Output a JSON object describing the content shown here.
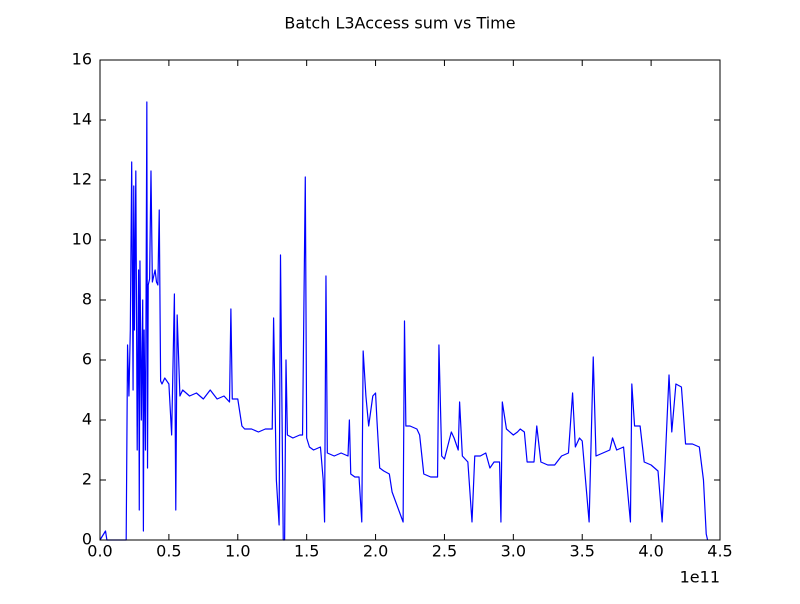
{
  "chart_data": {
    "type": "line",
    "title": "Batch L3Access sum vs Time",
    "x_offset_label": "1e11",
    "xlim": [
      0,
      4.5
    ],
    "ylim": [
      0,
      16
    ],
    "xticks": [
      {
        "value": 0,
        "label": "0.0"
      },
      0.5,
      {
        "value": 1,
        "label": "1.0"
      },
      1.5,
      {
        "value": 2,
        "label": "2.0"
      },
      2.5,
      {
        "value": 3,
        "label": "3.0"
      },
      3.5,
      {
        "value": 4,
        "label": "4.0"
      },
      4.5
    ],
    "yticks": [
      0,
      2,
      4,
      6,
      8,
      10,
      12,
      14,
      16
    ],
    "grid": false,
    "series": [
      {
        "name": "L3Access sum",
        "color": "#0000ff",
        "x": [
          0.0,
          0.04,
          0.05,
          0.15,
          0.17,
          0.19,
          0.2,
          0.21,
          0.22,
          0.23,
          0.24,
          0.245,
          0.25,
          0.26,
          0.27,
          0.28,
          0.285,
          0.29,
          0.3,
          0.31,
          0.315,
          0.32,
          0.33,
          0.34,
          0.345,
          0.35,
          0.36,
          0.37,
          0.38,
          0.39,
          0.4,
          0.41,
          0.42,
          0.43,
          0.44,
          0.45,
          0.47,
          0.5,
          0.52,
          0.54,
          0.55,
          0.56,
          0.58,
          0.6,
          0.65,
          0.7,
          0.75,
          0.8,
          0.85,
          0.9,
          0.94,
          0.95,
          0.96,
          1.0,
          1.03,
          1.05,
          1.1,
          1.15,
          1.2,
          1.25,
          1.26,
          1.28,
          1.3,
          1.31,
          1.33,
          1.34,
          1.35,
          1.36,
          1.4,
          1.45,
          1.47,
          1.49,
          1.5,
          1.52,
          1.55,
          1.6,
          1.62,
          1.63,
          1.64,
          1.65,
          1.7,
          1.75,
          1.8,
          1.81,
          1.82,
          1.85,
          1.88,
          1.9,
          1.91,
          1.93,
          1.95,
          1.98,
          2.0,
          2.01,
          2.03,
          2.06,
          2.1,
          2.12,
          2.2,
          2.21,
          2.22,
          2.25,
          2.3,
          2.32,
          2.35,
          2.4,
          2.45,
          2.46,
          2.48,
          2.5,
          2.55,
          2.57,
          2.6,
          2.61,
          2.63,
          2.67,
          2.7,
          2.72,
          2.76,
          2.8,
          2.83,
          2.86,
          2.9,
          2.91,
          2.92,
          2.95,
          3.0,
          3.03,
          3.05,
          3.08,
          3.1,
          3.15,
          3.17,
          3.2,
          3.25,
          3.3,
          3.35,
          3.4,
          3.43,
          3.45,
          3.48,
          3.5,
          3.55,
          3.58,
          3.6,
          3.65,
          3.7,
          3.72,
          3.75,
          3.8,
          3.85,
          3.86,
          3.88,
          3.92,
          3.95,
          4.0,
          4.05,
          4.08,
          4.1,
          4.13,
          4.15,
          4.18,
          4.22,
          4.25,
          4.3,
          4.35,
          4.38,
          4.4,
          4.41
        ],
        "values": [
          0,
          0.3,
          0,
          0,
          0,
          0,
          6.5,
          4.8,
          7,
          12.6,
          5,
          11.8,
          7,
          12.3,
          3,
          9,
          1,
          9.3,
          4,
          8,
          0.3,
          7,
          3,
          14.6,
          2.4,
          8.5,
          8.7,
          12.3,
          8.6,
          8.8,
          9,
          8.6,
          8.5,
          11,
          5.3,
          5.2,
          5.4,
          5.2,
          3.5,
          8.2,
          1,
          7.5,
          4.8,
          5,
          4.8,
          4.9,
          4.7,
          5,
          4.7,
          4.8,
          4.6,
          7.7,
          4.7,
          4.7,
          3.8,
          3.7,
          3.7,
          3.6,
          3.7,
          3.7,
          7.4,
          2,
          0.5,
          9.5,
          0,
          0,
          6,
          3.5,
          3.4,
          3.5,
          3.5,
          12.1,
          3.4,
          3.1,
          3,
          3.1,
          2,
          0.6,
          8.8,
          2.9,
          2.8,
          2.9,
          2.8,
          4,
          2.2,
          2.1,
          2.1,
          0.6,
          6.3,
          4.8,
          3.8,
          4.8,
          4.9,
          4,
          2.4,
          2.3,
          2.2,
          1.6,
          0.6,
          7.3,
          3.8,
          3.8,
          3.7,
          3.5,
          2.2,
          2.1,
          2.1,
          6.5,
          2.8,
          2.7,
          3.6,
          3.4,
          3,
          4.6,
          2.8,
          2.6,
          0.6,
          2.8,
          2.8,
          2.9,
          2.4,
          2.6,
          2.6,
          0.6,
          4.6,
          3.7,
          3.5,
          3.6,
          3.7,
          3.6,
          2.6,
          2.6,
          3.8,
          2.6,
          2.5,
          2.5,
          2.8,
          2.9,
          4.9,
          3.1,
          3.4,
          3.3,
          0.6,
          6.1,
          2.8,
          2.9,
          3,
          3.4,
          3,
          3.1,
          0.6,
          5.2,
          3.8,
          3.8,
          2.6,
          2.5,
          2.3,
          0.6,
          2.4,
          5.5,
          3.6,
          5.2,
          5.1,
          3.2,
          3.2,
          3.1,
          2,
          0.2,
          0
        ]
      }
    ]
  }
}
